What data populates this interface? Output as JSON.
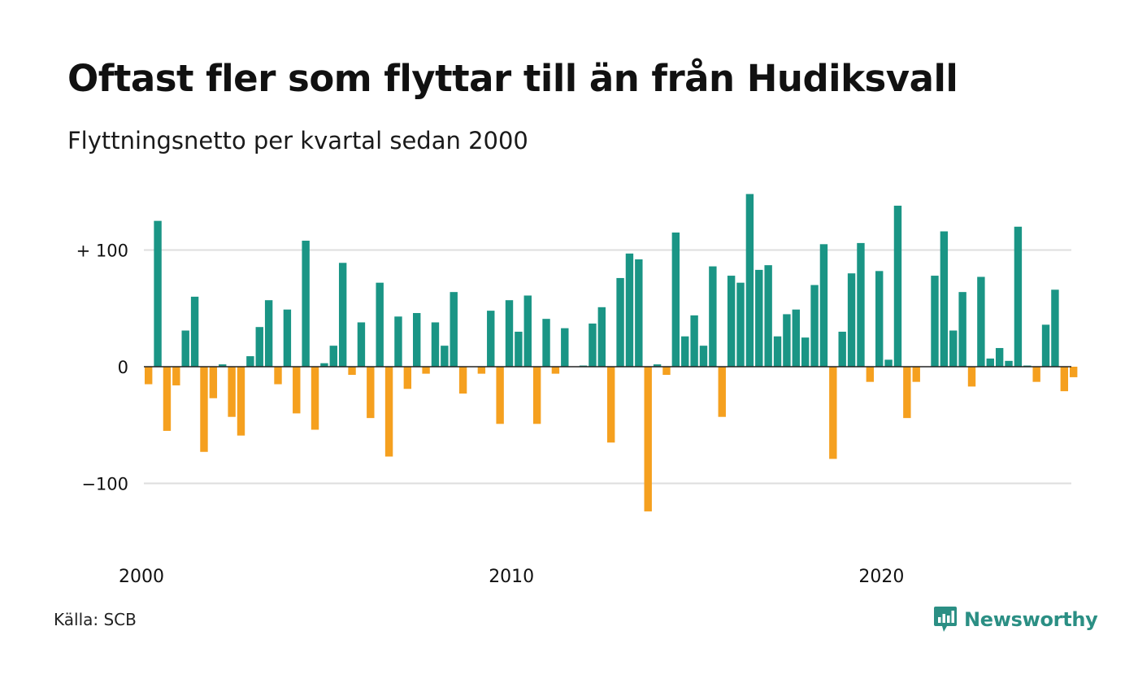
{
  "header": {
    "title": "Oftast fler som flyttar till än från Hudiksvall",
    "subtitle": "Flyttningsnetto per kvartal sedan 2000"
  },
  "footer": {
    "source": "Källa: SCB",
    "brand": "Newsworthy",
    "brand_icon": "newsworthy-chart-bubble-icon"
  },
  "colors": {
    "positive": "#1a9585",
    "negative": "#f5a01f",
    "grid": "#dedede",
    "baseline": "#222222",
    "brand": "#2b8f84"
  },
  "chart_data": {
    "type": "bar",
    "period": "quarter",
    "start": "2000 Q1",
    "ylim": [
      -145,
      150
    ],
    "y_ticks": [
      {
        "value": 100,
        "label": "+ 100"
      },
      {
        "value": 0,
        "label": "0"
      },
      {
        "value": -100,
        "label": "−100"
      }
    ],
    "x_ticks": [
      {
        "value": 2000,
        "label": "2000"
      },
      {
        "value": 2010,
        "label": "2010"
      },
      {
        "value": 2020,
        "label": "2020"
      }
    ],
    "grid": true,
    "legend": "none",
    "values": [
      -15,
      125,
      -55,
      -16,
      31,
      60,
      -73,
      -27,
      2,
      -43,
      -59,
      9,
      34,
      57,
      -15,
      49,
      -40,
      108,
      -54,
      3,
      18,
      89,
      -7,
      38,
      -44,
      72,
      -77,
      43,
      -19,
      46,
      -6,
      38,
      18,
      64,
      -23,
      0,
      -6,
      48,
      -49,
      57,
      30,
      61,
      -49,
      41,
      -6,
      33,
      0,
      1,
      37,
      51,
      -65,
      76,
      97,
      92,
      -124,
      2,
      -7,
      115,
      26,
      44,
      18,
      86,
      -43,
      78,
      72,
      148,
      83,
      87,
      26,
      45,
      49,
      25,
      70,
      105,
      -79,
      30,
      80,
      106,
      -13,
      82,
      6,
      138,
      -44,
      -13,
      0,
      78,
      116,
      31,
      64,
      -17,
      77,
      7,
      16,
      5,
      120,
      1,
      -13,
      36,
      66,
      -21,
      -9
    ]
  }
}
